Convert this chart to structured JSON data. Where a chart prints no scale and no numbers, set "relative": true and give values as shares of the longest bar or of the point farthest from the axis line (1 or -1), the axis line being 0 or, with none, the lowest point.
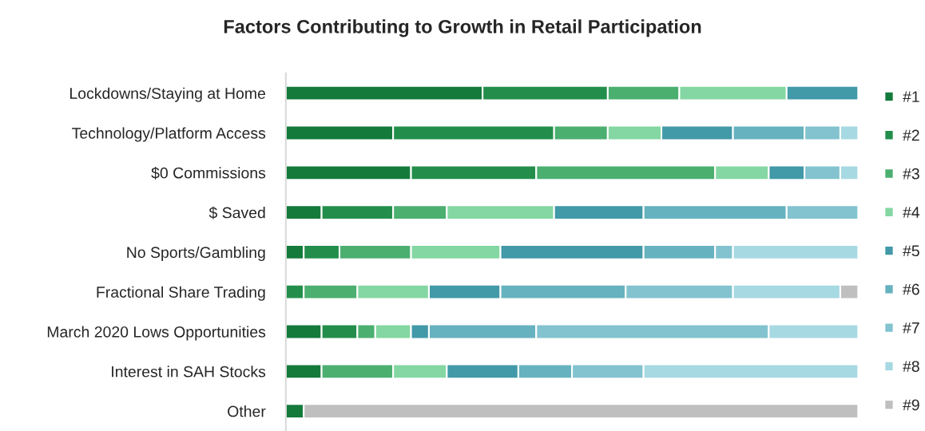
{
  "chart_data": {
    "type": "bar",
    "orientation": "horizontal",
    "stacked": true,
    "relative": true,
    "legend": "right",
    "grid": false,
    "title": "Factors Contributing to Growth in Retail Participation",
    "categories": [
      "Lockdowns/Staying at Home",
      "Technology/Platform Access",
      "$0 Commissions",
      "$ Saved",
      "No Sports/Gambling",
      "Fractional Share Trading",
      "March 2020 Lows Opportunities",
      "Interest in SAH Stocks",
      "Other"
    ],
    "series": [
      {
        "name": "#1",
        "color": "#147a3c",
        "values": [
          0.34375,
          0.1875,
          0.21875,
          0.0625,
          0.03125,
          null,
          0.0625,
          0.0625,
          0.03125
        ]
      },
      {
        "name": "#2",
        "color": "#238e4b",
        "values": [
          0.21875,
          0.28125,
          0.21875,
          0.125,
          0.0625,
          0.03125,
          0.0625,
          null,
          null
        ]
      },
      {
        "name": "#3",
        "color": "#4baf70",
        "values": [
          0.125,
          0.09375,
          0.3125,
          0.09375,
          0.125,
          0.09375,
          0.03125,
          0.125,
          null
        ]
      },
      {
        "name": "#4",
        "color": "#84d7a2",
        "values": [
          0.1875,
          0.09375,
          0.09375,
          0.1875,
          0.15625,
          0.125,
          0.0625,
          0.09375,
          null
        ]
      },
      {
        "name": "#5",
        "color": "#4299a8",
        "values": [
          0.125,
          0.125,
          0.0625,
          0.15625,
          0.25,
          0.125,
          0.03125,
          0.125,
          null
        ]
      },
      {
        "name": "#6",
        "color": "#66b2bf",
        "values": [
          null,
          0.125,
          null,
          0.25,
          0.125,
          0.21875,
          0.1875,
          0.09375,
          null
        ]
      },
      {
        "name": "#7",
        "color": "#82c3cf",
        "values": [
          null,
          0.0625,
          0.0625,
          0.125,
          0.03125,
          0.1875,
          0.40625,
          0.125,
          null
        ]
      },
      {
        "name": "#8",
        "color": "#a7d9e2",
        "values": [
          null,
          0.03125,
          0.03125,
          null,
          0.21875,
          0.1875,
          0.15625,
          0.375,
          null
        ]
      },
      {
        "name": "#9",
        "color": "#bfbfbf",
        "values": [
          null,
          null,
          null,
          null,
          null,
          0.03125,
          null,
          null,
          0.96875
        ]
      }
    ]
  }
}
